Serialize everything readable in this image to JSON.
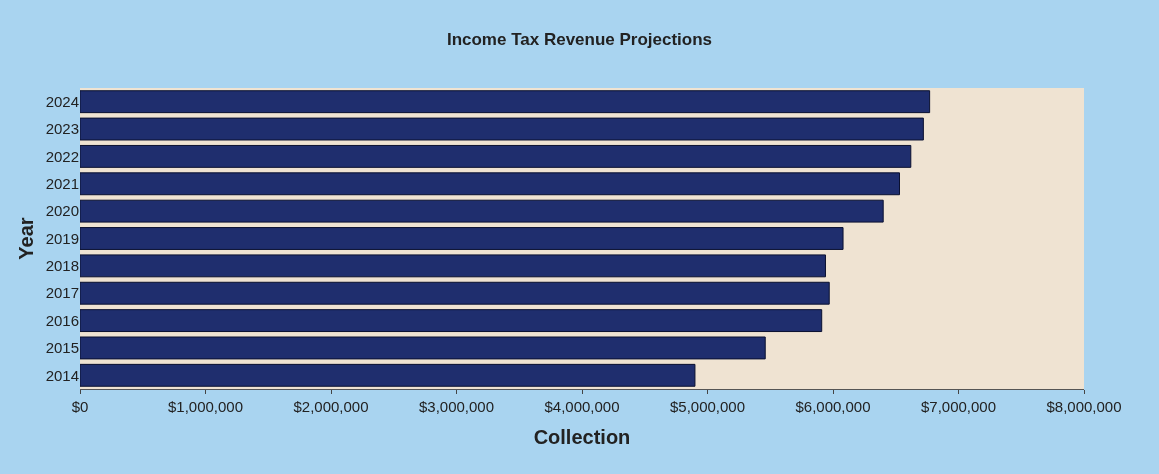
{
  "chart_data": {
    "type": "bar",
    "orientation": "horizontal",
    "title": "Income Tax Revenue Projections",
    "xlabel": "Collection",
    "ylabel": "Year",
    "categories": [
      "2024",
      "2023",
      "2022",
      "2021",
      "2020",
      "2019",
      "2018",
      "2017",
      "2016",
      "2015",
      "2014"
    ],
    "values": [
      6770000,
      6720000,
      6620000,
      6530000,
      6400000,
      6080000,
      5940000,
      5970000,
      5910000,
      5460000,
      4900000
    ],
    "color": "#1f2e6e",
    "xlim": [
      0,
      8000000
    ],
    "xticks": [
      {
        "value": 0,
        "label": "$0"
      },
      {
        "value": 1000000,
        "label": "$1,000,000"
      },
      {
        "value": 2000000,
        "label": "$2,000,000"
      },
      {
        "value": 3000000,
        "label": "$3,000,000"
      },
      {
        "value": 4000000,
        "label": "$4,000,000"
      },
      {
        "value": 5000000,
        "label": "$5,000,000"
      },
      {
        "value": 6000000,
        "label": "$6,000,000"
      },
      {
        "value": 7000000,
        "label": "$7,000,000"
      },
      {
        "value": 8000000,
        "label": "$8,000,000"
      }
    ],
    "grid": false,
    "legend": false
  }
}
